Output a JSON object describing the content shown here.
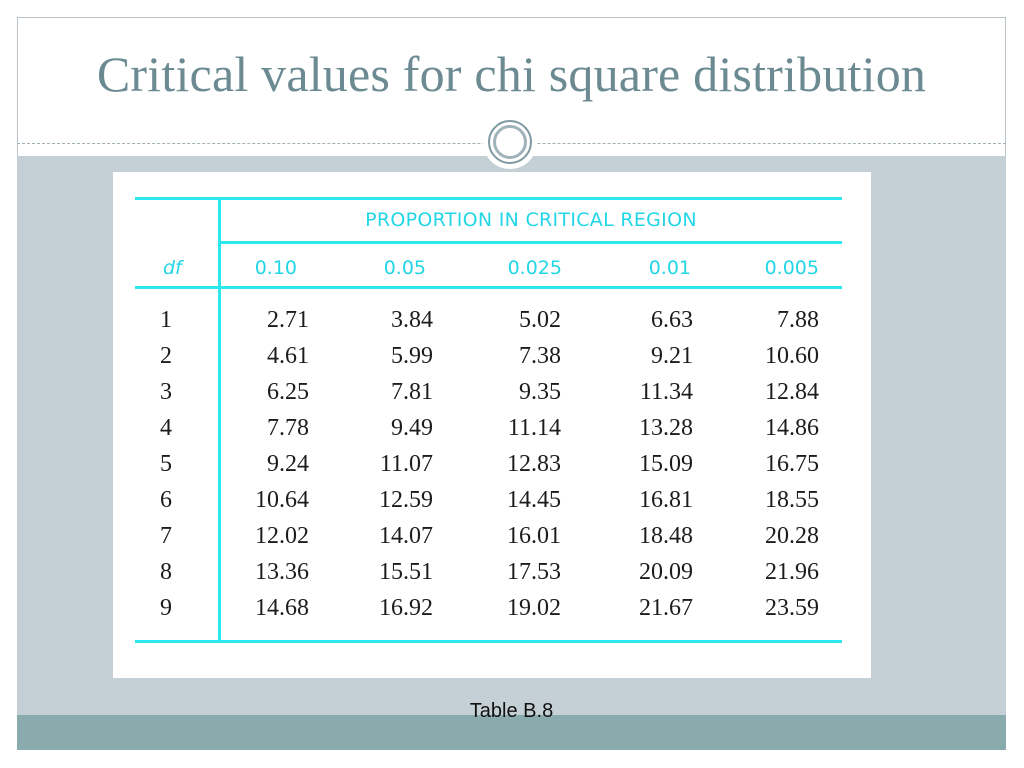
{
  "slide": {
    "title": "Critical values for chi square distribution",
    "caption": "Table B.8"
  },
  "table": {
    "heading": "PROPORTION IN CRITICAL REGION",
    "df_label": "df",
    "columns": [
      "0.10",
      "0.05",
      "0.025",
      "0.01",
      "0.005"
    ],
    "rows": [
      {
        "df": "1",
        "values": [
          "2.71",
          "3.84",
          "5.02",
          "6.63",
          "7.88"
        ]
      },
      {
        "df": "2",
        "values": [
          "4.61",
          "5.99",
          "7.38",
          "9.21",
          "10.60"
        ]
      },
      {
        "df": "3",
        "values": [
          "6.25",
          "7.81",
          "9.35",
          "11.34",
          "12.84"
        ]
      },
      {
        "df": "4",
        "values": [
          "7.78",
          "9.49",
          "11.14",
          "13.28",
          "14.86"
        ]
      },
      {
        "df": "5",
        "values": [
          "9.24",
          "11.07",
          "12.83",
          "15.09",
          "16.75"
        ]
      },
      {
        "df": "6",
        "values": [
          "10.64",
          "12.59",
          "14.45",
          "16.81",
          "18.55"
        ]
      },
      {
        "df": "7",
        "values": [
          "12.02",
          "14.07",
          "16.01",
          "18.48",
          "20.28"
        ]
      },
      {
        "df": "8",
        "values": [
          "13.36",
          "15.51",
          "17.53",
          "20.09",
          "21.96"
        ]
      },
      {
        "df": "9",
        "values": [
          "14.68",
          "16.92",
          "19.02",
          "21.67",
          "23.59"
        ]
      }
    ]
  },
  "colors": {
    "title": "#6b8a92",
    "table_accent": "#22d6e6",
    "content_band": "#c5d0d6",
    "footer_band": "#8aabad"
  },
  "icons": {
    "divider": "circle-ornament-icon"
  }
}
